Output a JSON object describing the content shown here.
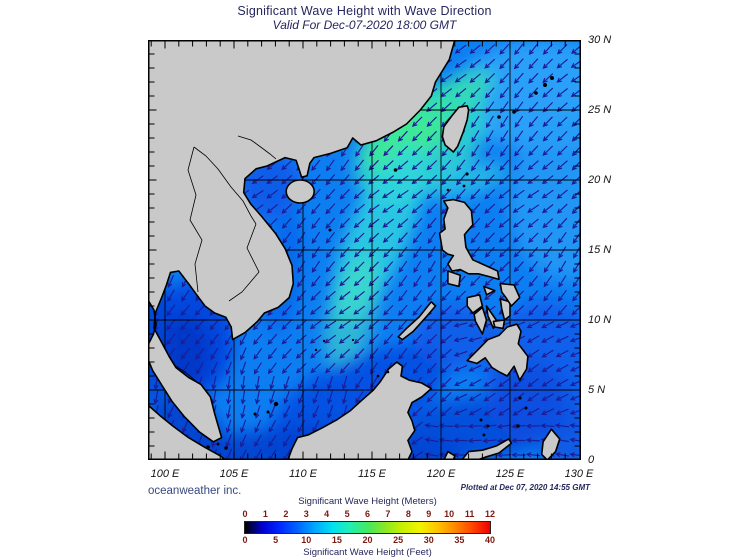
{
  "header": {
    "title": "Significant Wave Height with Wave Direction",
    "subtitle": "Valid For Dec-07-2020 18:00 GMT"
  },
  "credit": "oceanweather inc.",
  "plotted_at": "Plotted at Dec 07, 2020 14:55 GMT",
  "map": {
    "lat_labels": [
      "30 N",
      "25 N",
      "20 N",
      "15 N",
      "10 N",
      "5 N",
      "0"
    ],
    "lon_labels": [
      "100 E",
      "105 E",
      "110 E",
      "115 E",
      "120 E",
      "125 E",
      "130 E"
    ],
    "lat_ticks_deg": [
      30,
      25,
      20,
      15,
      10,
      5,
      0
    ],
    "lon_ticks_deg": [
      100,
      105,
      110,
      115,
      120,
      125,
      130
    ]
  },
  "colorbar": {
    "meters_label": "Significant Wave Height (Meters)",
    "feet_label": "Significant Wave Height (Feet)",
    "meters_ticks": [
      "0",
      "1",
      "2",
      "3",
      "4",
      "5",
      "6",
      "7",
      "8",
      "9",
      "10",
      "11",
      "12"
    ],
    "feet_ticks": [
      "0",
      "5",
      "10",
      "15",
      "20",
      "25",
      "30",
      "35",
      "40"
    ],
    "gradient": [
      "#000000",
      "#0000d2",
      "#0028ff",
      "#0064ff",
      "#00a8ff",
      "#00e0f0",
      "#22eeb2",
      "#44e862",
      "#8ae824",
      "#c8f000",
      "#f2f200",
      "#ffc400",
      "#ff8800",
      "#ff4400",
      "#ee0000"
    ]
  },
  "chart_data": {
    "type": "heatmap",
    "title": "Significant Wave Height with Wave Direction",
    "valid_time": "Dec-07-2020 18:00 GMT",
    "plotted_time": "Dec 07, 2020 14:55 GMT",
    "lon_range_deg_east": [
      100,
      130
    ],
    "lat_range_deg_north": [
      0,
      30
    ],
    "scale_meters": [
      0,
      1,
      2,
      3,
      4,
      5,
      6,
      7,
      8,
      9,
      10,
      11,
      12
    ],
    "scale_feet": [
      0,
      5,
      10,
      15,
      20,
      25,
      30,
      35,
      40
    ],
    "field_summary": "Wave heights 1-2 m over most of the South China Sea and Philippine Sea; maximum ~3-4 m (green) in the Taiwan Strait extending southwest through the Luzon Strait; lowest <1 m (dark blue/black) in the Gulf of Thailand, Gulf of Tonkin, Malacca Strait, Java Sea and coastal lee zones; wave direction predominantly toward the southwest, turning westward in the Celebes Sea"
  },
  "colors": {
    "ocean_base": "#0d7ef2",
    "land": "#c9c9c9",
    "coastline": "#000000",
    "grid": "#000000",
    "arrow": "#1c1c96",
    "heading_text": "#26265e",
    "axis_text": "#141414",
    "scale_number_text": "#7a1a10",
    "credit_text": "#39487e"
  }
}
